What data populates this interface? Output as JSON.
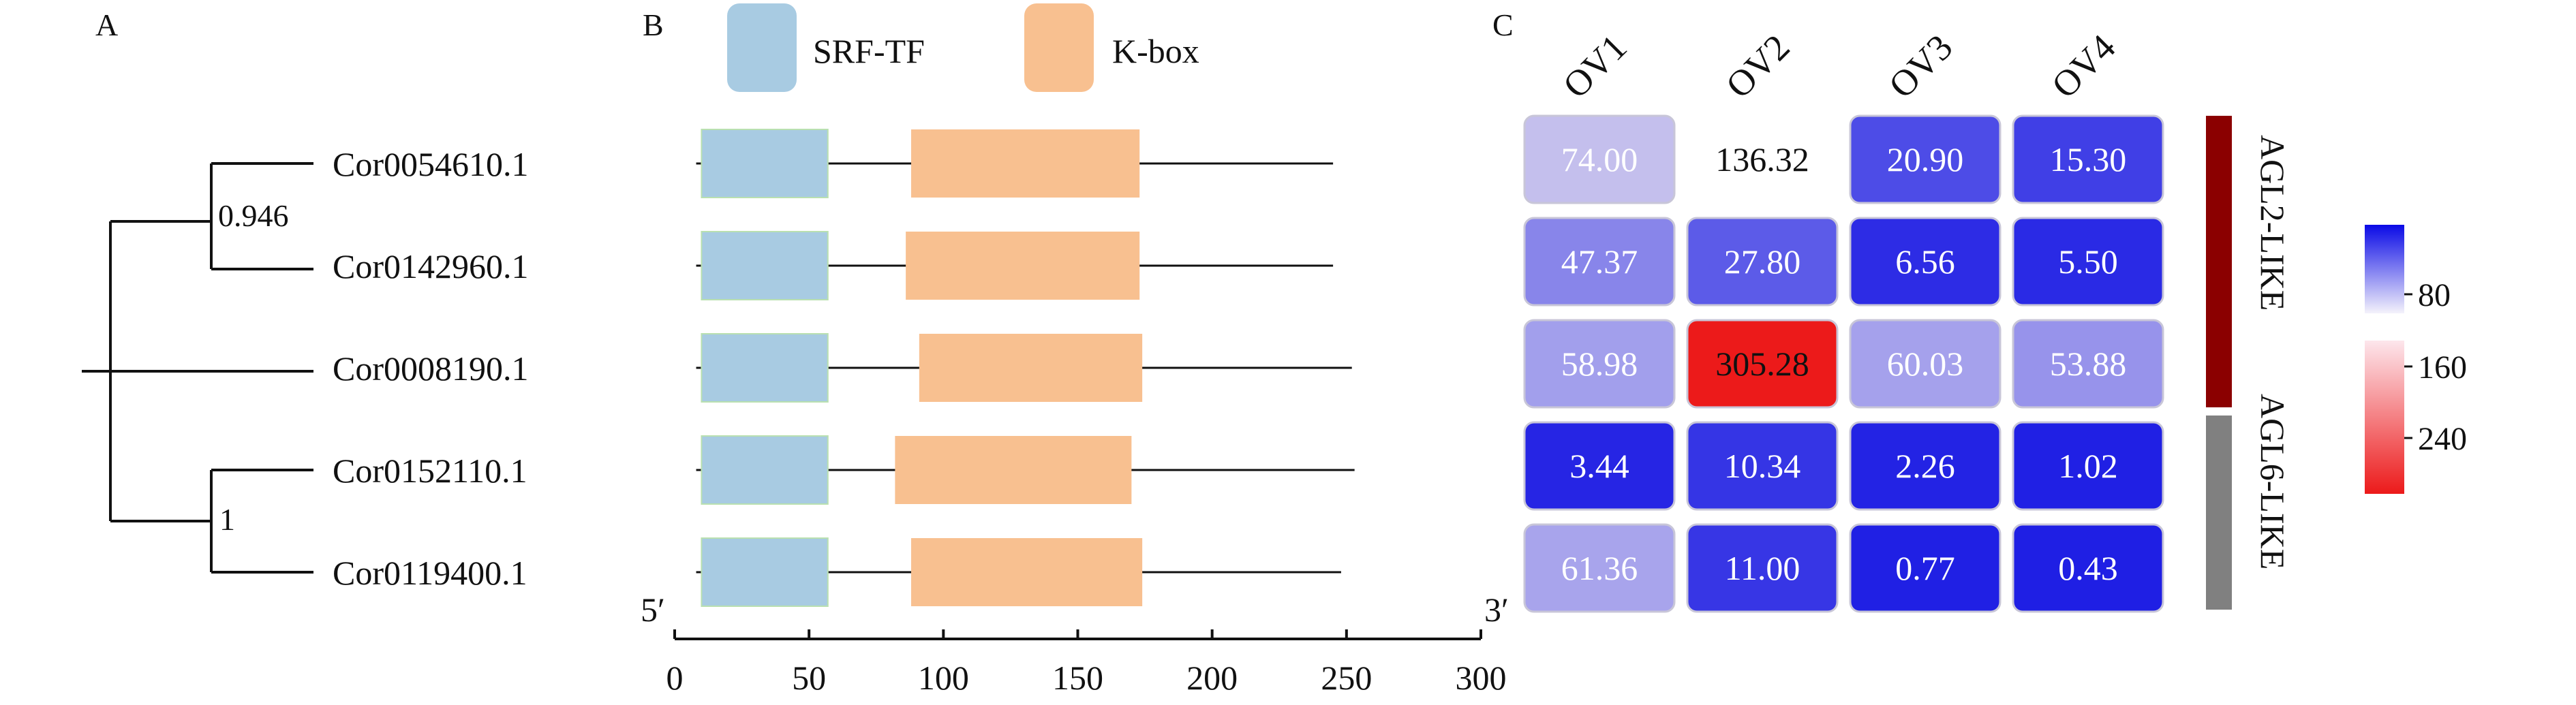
{
  "panels": {
    "a": {
      "letter": "A"
    },
    "b": {
      "letter": "B"
    },
    "c": {
      "letter": "C"
    }
  },
  "genes": [
    "Cor0054610.1",
    "Cor0142960.1",
    "Cor0008190.1",
    "Cor0152110.1",
    "Cor0119400.1"
  ],
  "tree": {
    "bootstrap_upper": "0.946",
    "bootstrap_lower": "1"
  },
  "legend": {
    "srf": {
      "label": "SRF-TF",
      "color": "#a8cbe2"
    },
    "kbox": {
      "label": "K-box",
      "color": "#f8c090"
    }
  },
  "domains": [
    {
      "length": 245,
      "srf": [
        10,
        57
      ],
      "kbox": [
        88,
        173
      ]
    },
    {
      "length": 245,
      "srf": [
        10,
        57
      ],
      "kbox": [
        86,
        173
      ]
    },
    {
      "length": 252,
      "srf": [
        10,
        57
      ],
      "kbox": [
        91,
        174
      ]
    },
    {
      "length": 253,
      "srf": [
        10,
        57
      ],
      "kbox": [
        82,
        170
      ]
    },
    {
      "length": 248,
      "srf": [
        10,
        57
      ],
      "kbox": [
        88,
        174
      ]
    }
  ],
  "axis": {
    "ticks": [
      0,
      50,
      100,
      150,
      200,
      250,
      300
    ],
    "max": 300,
    "left_label": "5′",
    "right_label": "3′"
  },
  "heatmap": {
    "columns": [
      "OV1",
      "OV2",
      "OV3",
      "OV4"
    ],
    "values": [
      [
        "74.00",
        "136.32",
        "20.90",
        "15.30"
      ],
      [
        "47.37",
        "27.80",
        "6.56",
        "5.50"
      ],
      [
        "58.98",
        "305.28",
        "60.03",
        "53.88"
      ],
      [
        "3.44",
        "10.34",
        "2.26",
        "1.02"
      ],
      [
        "61.36",
        "11.00",
        "0.77",
        "0.43"
      ]
    ],
    "colorbar_ticks": [
      "80",
      "160",
      "240"
    ],
    "groups": [
      {
        "label": "AGL2-LIKE",
        "color": "#8b0000"
      },
      {
        "label": "AGL6-LIKE",
        "color": "#808080"
      }
    ]
  }
}
